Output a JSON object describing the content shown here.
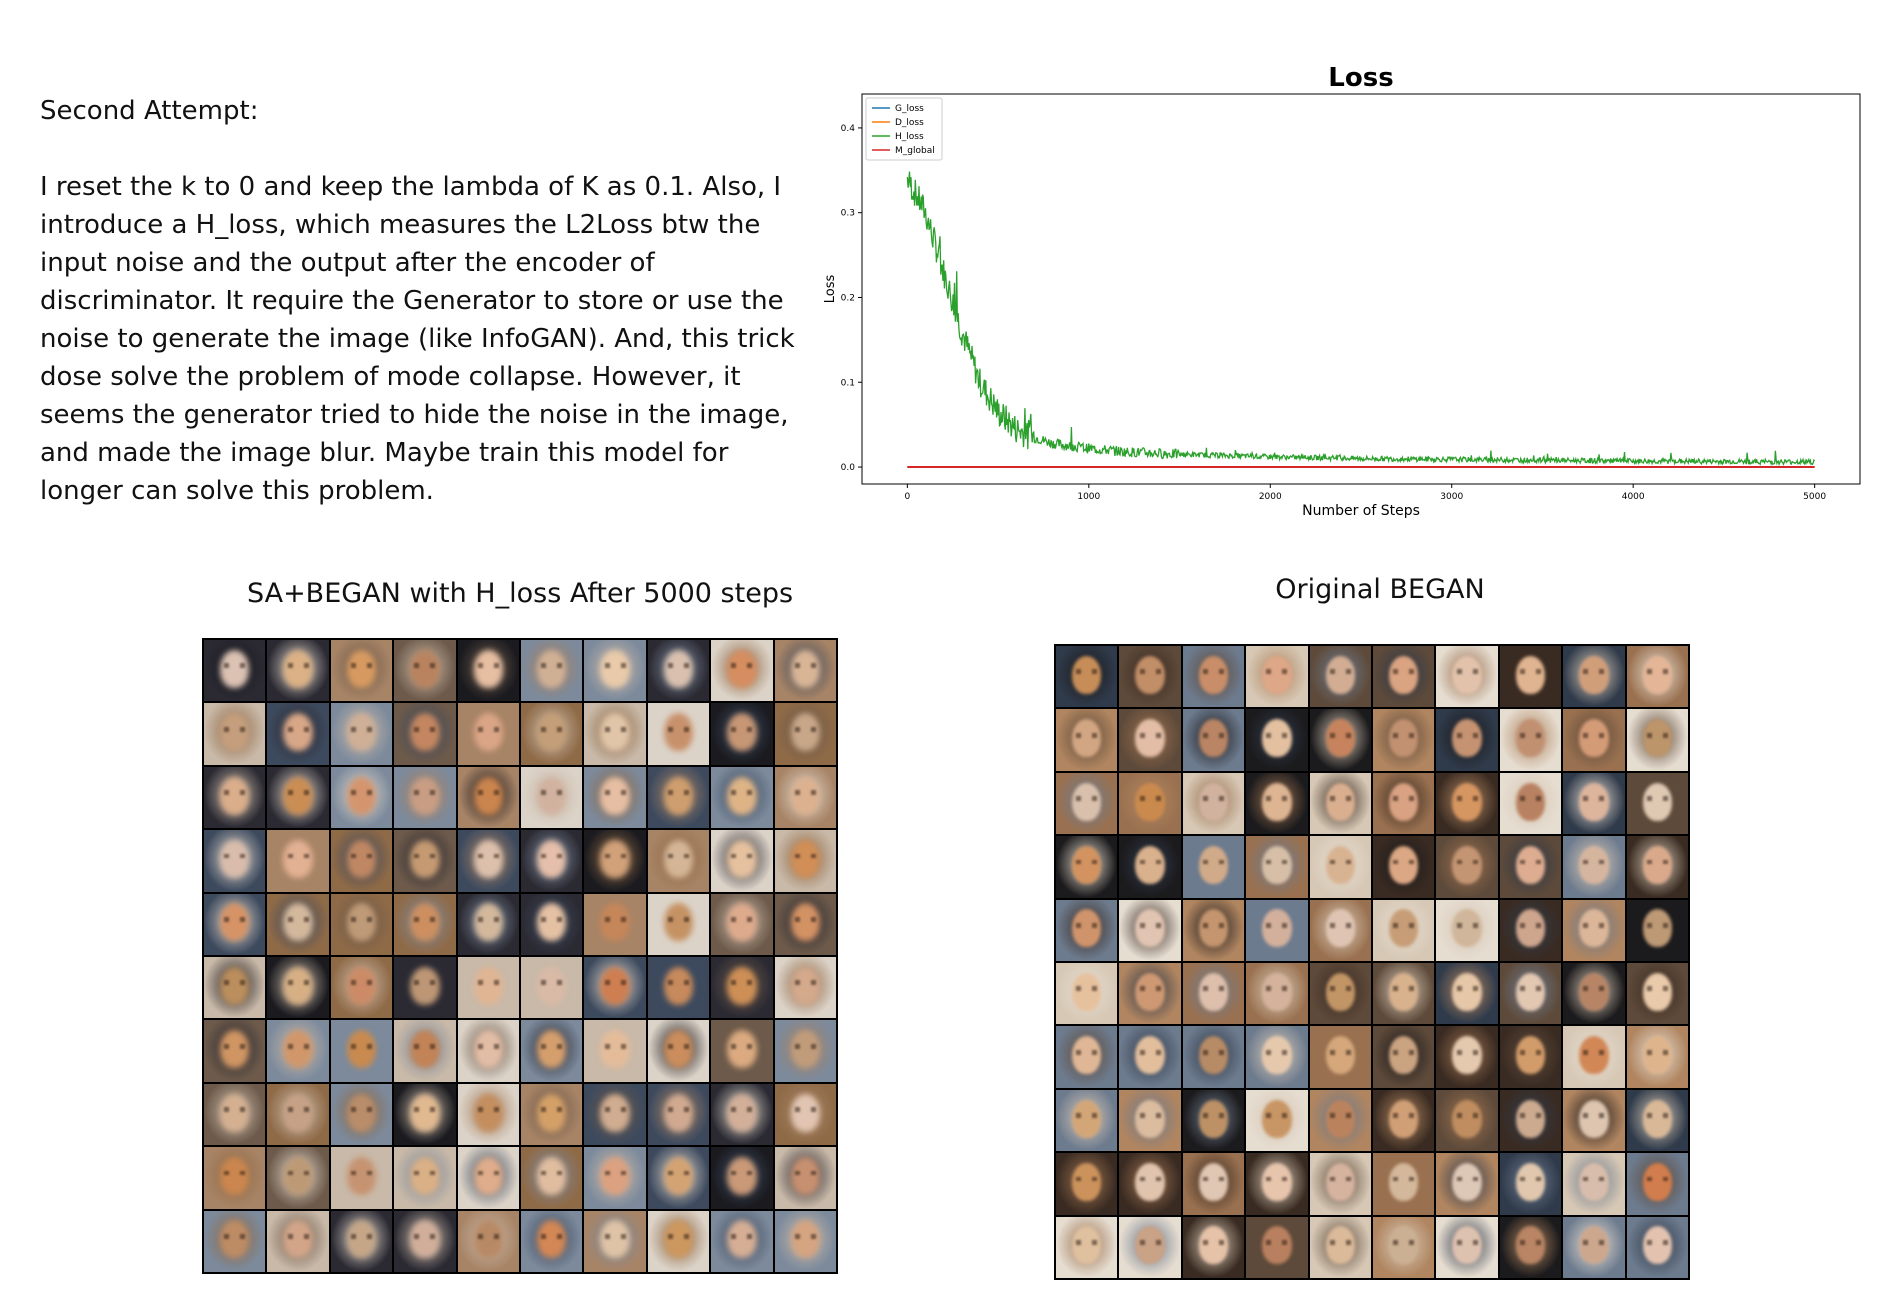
{
  "notes": {
    "heading": "Second Attempt:",
    "body": "I reset the k to 0 and keep the lambda of K as 0.1. Also, I introduce a H_loss, which measures the L2Loss btw the input noise and the output after the encoder of discriminator. It require the Generator to store or use the noise to generate the image (like InfoGAN). And, this trick dose solve the problem of mode collapse. However, it seems the generator tried to hide the noise in the image, and made the image blur. Maybe train this model for longer can solve this problem."
  },
  "chart_data": {
    "type": "line",
    "title": "Loss",
    "xlabel": "Number of Steps",
    "ylabel": "Loss",
    "xlim": [
      -250,
      5250
    ],
    "ylim": [
      -0.02,
      0.44
    ],
    "xticks": [
      0,
      1000,
      2000,
      3000,
      4000,
      5000
    ],
    "yticks": [
      0.0,
      0.1,
      0.2,
      0.3,
      0.4
    ],
    "grid": false,
    "legend_position": "top-left",
    "series": [
      {
        "name": "G_loss",
        "color": "#1f77b4",
        "x": [
          0,
          5000
        ],
        "y": [
          0,
          0
        ]
      },
      {
        "name": "D_loss",
        "color": "#ff7f0e",
        "x": [
          0,
          5000
        ],
        "y": [
          0,
          0
        ]
      },
      {
        "name": "H_loss",
        "color": "#2ca02c",
        "x": [
          0,
          100,
          200,
          300,
          400,
          500,
          600,
          700,
          800,
          1000,
          1200,
          1500,
          2000,
          2500,
          3000,
          3500,
          4000,
          4500,
          5000
        ],
        "y": [
          0.34,
          0.3,
          0.23,
          0.16,
          0.1,
          0.065,
          0.045,
          0.035,
          0.028,
          0.022,
          0.018,
          0.015,
          0.012,
          0.01,
          0.009,
          0.008,
          0.007,
          0.0065,
          0.006
        ]
      },
      {
        "name": "M_global",
        "color": "#d62728",
        "x": [
          0,
          5000
        ],
        "y": [
          0,
          0
        ]
      }
    ]
  },
  "grids": {
    "left_title": "SA+BEGAN with H_loss After 5000 steps",
    "right_title": "Original BEGAN"
  }
}
